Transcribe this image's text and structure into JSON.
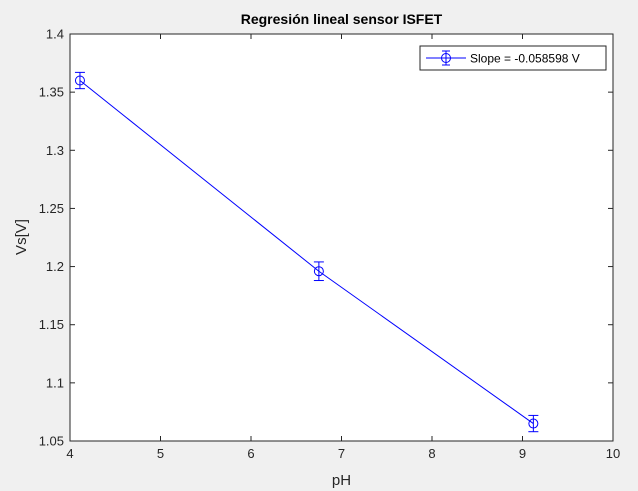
{
  "chart_data": {
    "type": "scatter",
    "title": "Regresión lineal sensor ISFET",
    "xlabel": "pH",
    "ylabel": "Vs[V]",
    "xlim": [
      4,
      10
    ],
    "ylim": [
      1.05,
      1.4
    ],
    "xticks": [
      "4",
      "5",
      "6",
      "7",
      "8",
      "9",
      "10"
    ],
    "yticks": [
      "1.05",
      "1.1",
      "1.15",
      "1.2",
      "1.25",
      "1.3",
      "1.35",
      "1.4"
    ],
    "grid": false,
    "legend_position": "top-right",
    "series": [
      {
        "name": "Slope = -0.058598 V",
        "color": "#0000ff",
        "marker": "circle",
        "x": [
          4.11,
          6.75,
          9.12
        ],
        "y": [
          1.36,
          1.196,
          1.065
        ],
        "err": [
          0.007,
          0.008,
          0.007
        ]
      }
    ]
  }
}
